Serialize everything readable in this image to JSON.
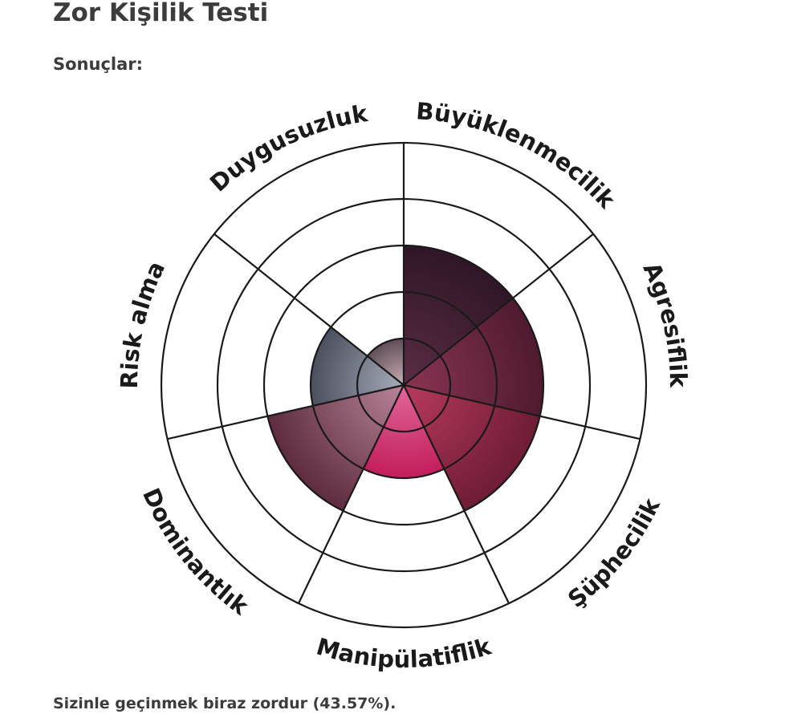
{
  "page": {
    "title": "Zor Kişilik Testi",
    "section_label": "Sonuçlar:",
    "result_text": "Sizinle geçinmek biraz zordur (43.57%)."
  },
  "chart_data": {
    "type": "polar-area",
    "title": "",
    "categories": [
      "Büyüklenmecilik",
      "Agresiflik",
      "Şüphecilik",
      "Manipülatiflik",
      "Dominantlık",
      "Risk alma",
      "Duygusuzluk"
    ],
    "values": [
      3,
      3,
      3,
      2,
      3,
      2,
      1
    ],
    "max_value": 5,
    "rings": 5,
    "grid": true,
    "series_colors": [
      [
        "#5b2d45",
        "#2f1626"
      ],
      [
        "#8a3552",
        "#4f1a30"
      ],
      [
        "#b83a5e",
        "#6e1c35"
      ],
      [
        "#e2679a",
        "#c21e5b"
      ],
      [
        "#b9849a",
        "#5e2c3e"
      ],
      [
        "#a8adbb",
        "#4b4f5e"
      ],
      [
        "#c9b0b8",
        "#5f4e56"
      ]
    ]
  }
}
